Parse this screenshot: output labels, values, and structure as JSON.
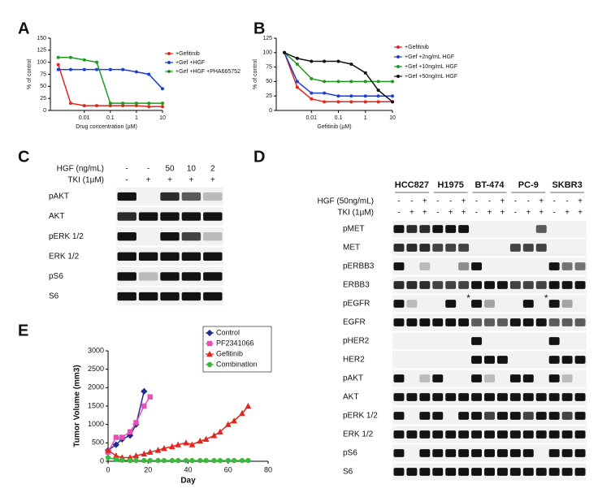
{
  "chart_data": [
    {
      "panel": "A",
      "type": "line",
      "y_label": "% of control",
      "x_label": "Drug concentration (µM)",
      "x_log": true,
      "xlim": [
        0.0005,
        10
      ],
      "xticks": [
        0.01,
        0.1,
        1,
        10
      ],
      "ylim": [
        0,
        150
      ],
      "yticks": [
        0,
        25,
        50,
        75,
        100,
        125,
        150
      ],
      "legend": "right",
      "series": [
        {
          "name": "+Gefitinib",
          "color": "#e0261f",
          "marker": "circle",
          "x": [
            0.001,
            0.003,
            0.01,
            0.03,
            0.1,
            0.3,
            1,
            3,
            10
          ],
          "values": [
            95,
            15,
            10,
            10,
            10,
            10,
            10,
            8,
            8
          ]
        },
        {
          "name": "+Gef +HGF",
          "color": "#1c3fcf",
          "marker": "circle",
          "x": [
            0.001,
            0.003,
            0.01,
            0.03,
            0.1,
            0.3,
            1,
            3,
            10
          ],
          "values": [
            85,
            85,
            85,
            85,
            85,
            85,
            80,
            75,
            45
          ]
        },
        {
          "name": "+Gef +HGF +PHA665752",
          "color": "#1e9a1e",
          "marker": "circle",
          "x": [
            0.001,
            0.003,
            0.01,
            0.03,
            0.1,
            0.3,
            1,
            3,
            10
          ],
          "values": [
            110,
            110,
            105,
            100,
            15,
            15,
            15,
            15,
            15
          ]
        }
      ]
    },
    {
      "panel": "B",
      "type": "line",
      "y_label": "% of control",
      "x_label": "Gefitinib (µM)",
      "x_log": true,
      "xlim": [
        0.0005,
        10
      ],
      "xticks": [
        0.01,
        0.1,
        1,
        10
      ],
      "ylim": [
        0,
        125
      ],
      "yticks": [
        0,
        25,
        50,
        75,
        100,
        125
      ],
      "legend": "right",
      "series": [
        {
          "name": "+Gefitinib",
          "color": "#e0261f",
          "marker": "circle",
          "x": [
            0.001,
            0.003,
            0.01,
            0.03,
            0.1,
            0.3,
            1,
            3,
            10
          ],
          "values": [
            100,
            40,
            20,
            15,
            15,
            15,
            15,
            15,
            15
          ]
        },
        {
          "name": "+Gef +2ng/mL HGF",
          "color": "#1c3fcf",
          "marker": "circle",
          "x": [
            0.001,
            0.003,
            0.01,
            0.03,
            0.1,
            0.3,
            1,
            3,
            10
          ],
          "values": [
            100,
            50,
            30,
            30,
            25,
            25,
            25,
            25,
            25
          ]
        },
        {
          "name": "+Gef +10ng/mL HGF",
          "color": "#1e9a1e",
          "marker": "circle",
          "x": [
            0.001,
            0.003,
            0.01,
            0.03,
            0.1,
            0.3,
            1,
            3,
            10
          ],
          "values": [
            100,
            80,
            55,
            50,
            50,
            50,
            50,
            50,
            50
          ]
        },
        {
          "name": "+Gef +50ng/mL HGF",
          "color": "#111111",
          "marker": "circle",
          "x": [
            0.001,
            0.003,
            0.01,
            0.03,
            0.1,
            0.3,
            1,
            3,
            10
          ],
          "values": [
            100,
            90,
            85,
            85,
            85,
            80,
            65,
            35,
            15
          ]
        }
      ]
    },
    {
      "panel": "E",
      "type": "line",
      "y_label": "Tumor Volume (mm3)",
      "x_label": "Day",
      "x_log": false,
      "xlim": [
        0,
        80
      ],
      "xticks": [
        0,
        20,
        40,
        60,
        80
      ],
      "ylim": [
        0,
        3000
      ],
      "yticks": [
        0,
        500,
        1000,
        1500,
        2000,
        2500,
        3000
      ],
      "legend": "top-right",
      "series": [
        {
          "name": "Control",
          "color": "#1f2f8f",
          "marker": "diamond",
          "x": [
            0,
            4,
            7,
            11,
            14,
            18
          ],
          "values": [
            300,
            450,
            600,
            700,
            1000,
            1900
          ]
        },
        {
          "name": "PF2341066",
          "color": "#e84fb5",
          "marker": "square",
          "x": [
            0,
            4,
            7,
            11,
            14,
            18,
            21
          ],
          "values": [
            250,
            650,
            650,
            800,
            1050,
            1500,
            1750
          ]
        },
        {
          "name": "Gefitinib",
          "color": "#e0261f",
          "marker": "triangle",
          "x": [
            0,
            4,
            7,
            11,
            14,
            18,
            21,
            25,
            28,
            32,
            35,
            39,
            42,
            46,
            49,
            53,
            56,
            60,
            63,
            67,
            70
          ],
          "values": [
            300,
            150,
            100,
            100,
            150,
            200,
            250,
            300,
            350,
            400,
            450,
            500,
            450,
            550,
            600,
            700,
            800,
            1000,
            1100,
            1300,
            1500
          ]
        },
        {
          "name": "Combination",
          "color": "#3cb83c",
          "marker": "circle",
          "x": [
            0,
            4,
            7,
            11,
            14,
            18,
            21,
            25,
            28,
            32,
            35,
            39,
            42,
            46,
            49,
            53,
            56,
            60,
            63,
            67,
            70
          ],
          "values": [
            100,
            50,
            30,
            20,
            20,
            20,
            20,
            20,
            20,
            20,
            20,
            20,
            20,
            20,
            20,
            20,
            20,
            20,
            20,
            20,
            20
          ]
        }
      ]
    }
  ],
  "blot_c": {
    "panel": "C",
    "conditions": [
      {
        "label": "HGF (ng/mL)",
        "values": [
          "-",
          "-",
          "50",
          "10",
          "2"
        ]
      },
      {
        "label": "TKI (1µM)",
        "values": [
          "-",
          "+",
          "+",
          "+",
          "+"
        ]
      }
    ],
    "rows": [
      "pAKT",
      "AKT",
      "pERK 1/2",
      "ERK 1/2",
      "pS6",
      "S6"
    ]
  },
  "blot_d": {
    "panel": "D",
    "cell_lines": [
      {
        "name": "HCC827",
        "color": "#3a4bb5"
      },
      {
        "name": "H1975",
        "color": "#3a4bb5"
      },
      {
        "name": "BT-474",
        "color": "#d42a2a"
      },
      {
        "name": "PC-9",
        "color": "#3a4bb5"
      },
      {
        "name": "SKBR3",
        "color": "#d42a2a"
      }
    ],
    "conditions": [
      {
        "label": "HGF (50ng/mL)",
        "values": [
          "-",
          "-",
          "+",
          "-",
          "-",
          "+",
          "-",
          "-",
          "+",
          "-",
          "-",
          "+",
          "-",
          "-",
          "+"
        ]
      },
      {
        "label": "TKI (1µM)",
        "values": [
          "-",
          "+",
          "+",
          "-",
          "+",
          "+",
          "-",
          "+",
          "+",
          "-",
          "+",
          "+",
          "-",
          "+",
          "+"
        ]
      }
    ],
    "rows": [
      "pMET",
      "MET",
      "pERBB3",
      "ERBB3",
      "pEGFR",
      "EGFR",
      "pHER2",
      "HER2",
      "pAKT",
      "AKT",
      "pERK 1/2",
      "ERK 1/2",
      "pS6",
      "S6"
    ],
    "asterisks": [
      "*",
      "*"
    ]
  }
}
